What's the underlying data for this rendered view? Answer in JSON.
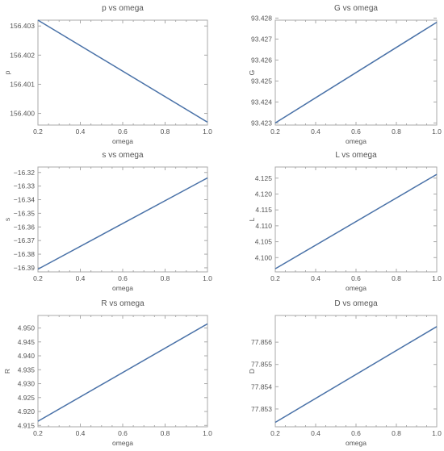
{
  "chart_data": [
    {
      "type": "line",
      "title": "p vs omega",
      "xlabel": "omega",
      "ylabel": "p",
      "xlim": [
        0.2,
        1.0
      ],
      "ylim": [
        156.3996,
        156.4032
      ],
      "xticks": [
        "0.2",
        "0.4",
        "0.6",
        "0.8",
        "1.0"
      ],
      "yticks": [
        "156.400",
        "156.401",
        "156.402",
        "156.403"
      ],
      "yticks_values": [
        156.4,
        156.401,
        156.402,
        156.403
      ],
      "series": [
        {
          "x": [
            0.2,
            1.0
          ],
          "y": [
            156.4032,
            156.3997
          ]
        }
      ],
      "line_color": "#4a72a8",
      "grid": false
    },
    {
      "type": "line",
      "title": "G vs omega",
      "xlabel": "omega",
      "ylabel": "G",
      "xlim": [
        0.2,
        1.0
      ],
      "ylim": [
        93.4229,
        93.4279
      ],
      "xticks": [
        "0.2",
        "0.4",
        "0.6",
        "0.8",
        "1.0"
      ],
      "yticks": [
        "93.423",
        "93.424",
        "93.425",
        "93.426",
        "93.427",
        "93.428"
      ],
      "yticks_values": [
        93.423,
        93.424,
        93.425,
        93.426,
        93.427,
        93.428
      ],
      "series": [
        {
          "x": [
            0.2,
            1.0
          ],
          "y": [
            93.423,
            93.4278
          ]
        }
      ],
      "line_color": "#4a72a8",
      "grid": false
    },
    {
      "type": "line",
      "title": "s vs omega",
      "xlabel": "omega",
      "ylabel": "s",
      "xlim": [
        0.2,
        1.0
      ],
      "ylim": [
        -16.393,
        -16.316
      ],
      "xticks": [
        "0.2",
        "0.4",
        "0.6",
        "0.8",
        "1.0"
      ],
      "yticks": [
        "−16.32",
        "−16.33",
        "−16.34",
        "−16.35",
        "−16.36",
        "−16.37",
        "−16.38",
        "−16.39"
      ],
      "yticks_values": [
        -16.32,
        -16.33,
        -16.34,
        -16.35,
        -16.36,
        -16.37,
        -16.38,
        -16.39
      ],
      "series": [
        {
          "x": [
            0.2,
            1.0
          ],
          "y": [
            -16.391,
            -16.324
          ]
        }
      ],
      "line_color": "#4a72a8",
      "grid": false
    },
    {
      "type": "line",
      "title": "L vs omega",
      "xlabel": "omega",
      "ylabel": "L",
      "xlim": [
        0.2,
        1.0
      ],
      "ylim": [
        4.0955,
        4.1285
      ],
      "xticks": [
        "0.2",
        "0.4",
        "0.6",
        "0.8",
        "1.0"
      ],
      "yticks": [
        "4.100",
        "4.105",
        "4.110",
        "4.115",
        "4.120",
        "4.125"
      ],
      "yticks_values": [
        4.1,
        4.105,
        4.11,
        4.115,
        4.12,
        4.125
      ],
      "series": [
        {
          "x": [
            0.2,
            1.0
          ],
          "y": [
            4.0965,
            4.1262
          ]
        }
      ],
      "line_color": "#4a72a8",
      "grid": false
    },
    {
      "type": "line",
      "title": "R vs omega",
      "xlabel": "omega",
      "ylabel": "R",
      "xlim": [
        0.2,
        1.0
      ],
      "ylim": [
        4.9145,
        4.9545
      ],
      "xticks": [
        "0.2",
        "0.4",
        "0.6",
        "0.8",
        "1.0"
      ],
      "yticks": [
        "4.915",
        "4.920",
        "4.925",
        "4.930",
        "4.935",
        "4.940",
        "4.945",
        "4.950"
      ],
      "yticks_values": [
        4.915,
        4.92,
        4.925,
        4.93,
        4.935,
        4.94,
        4.945,
        4.95
      ],
      "series": [
        {
          "x": [
            0.2,
            1.0
          ],
          "y": [
            4.9165,
            4.9515
          ]
        }
      ],
      "line_color": "#4a72a8",
      "grid": false
    },
    {
      "type": "line",
      "title": "D vs omega",
      "xlabel": "omega",
      "ylabel": "D",
      "xlim": [
        0.2,
        1.0
      ],
      "ylim": [
        77.8522,
        77.8572
      ],
      "xticks": [
        "0.2",
        "0.4",
        "0.6",
        "0.8",
        "1.0"
      ],
      "yticks": [
        "77.853",
        "77.854",
        "77.855",
        "77.856"
      ],
      "yticks_values": [
        77.853,
        77.854,
        77.855,
        77.856
      ],
      "series": [
        {
          "x": [
            0.2,
            1.0
          ],
          "y": [
            77.8524,
            77.8567
          ]
        }
      ],
      "line_color": "#4a72a8",
      "grid": false
    }
  ]
}
